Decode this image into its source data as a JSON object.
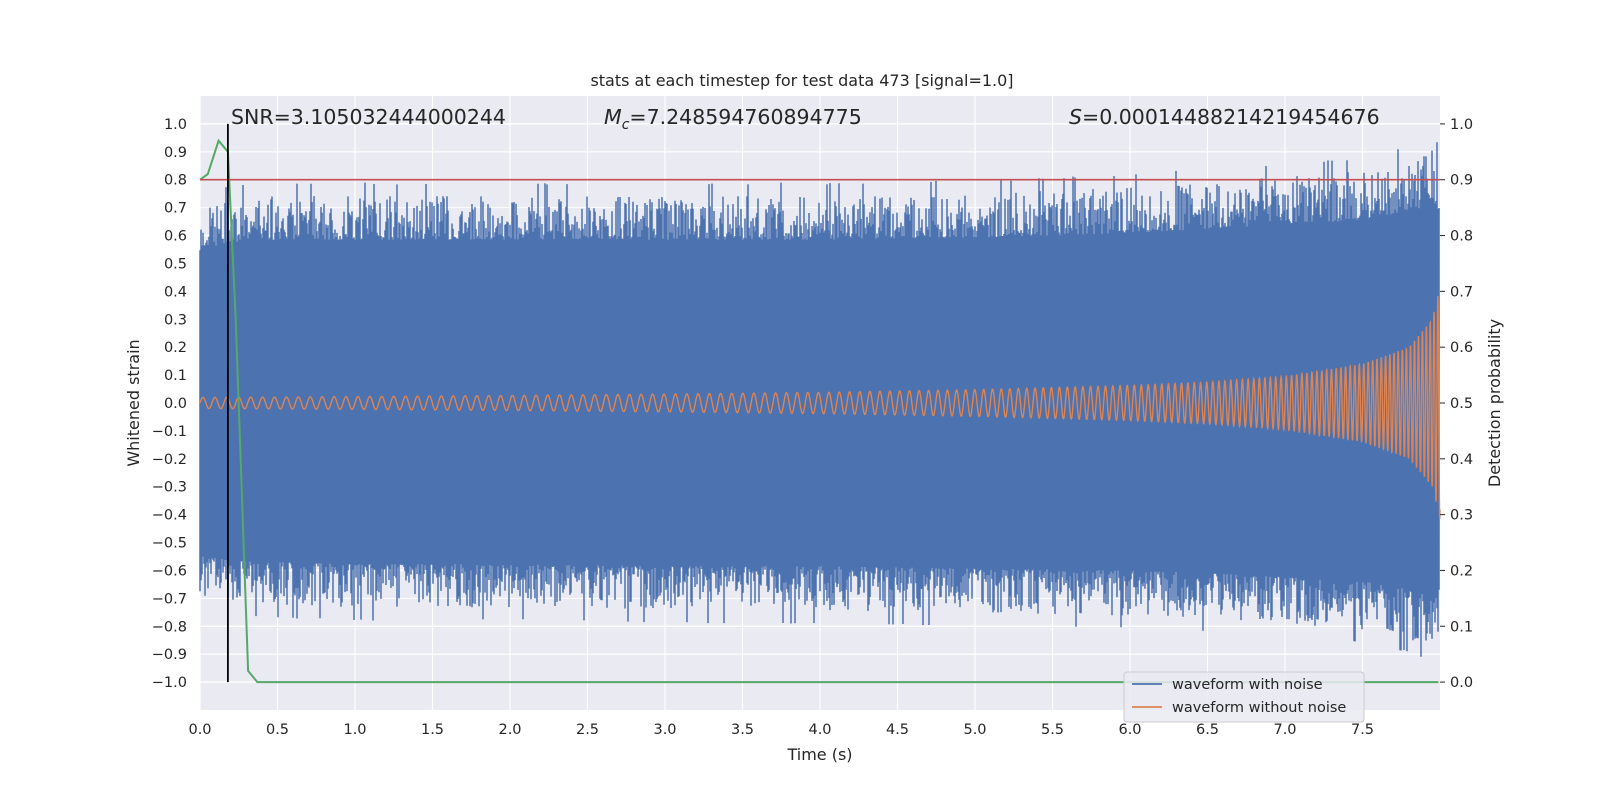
{
  "chart_data": {
    "type": "line",
    "title": "stats at each timestep for test data 473 [signal=1.0]",
    "xlabel": "Time (s)",
    "ylabel_left": "Whitened strain",
    "ylabel_right": "Detection probability",
    "xlim": [
      0.0,
      8.0
    ],
    "ylim_left": [
      -1.1,
      1.1
    ],
    "ylim_right": [
      -0.05,
      1.05
    ],
    "x_ticks": [
      "0.0",
      "0.5",
      "1.0",
      "1.5",
      "2.0",
      "2.5",
      "3.0",
      "3.5",
      "4.0",
      "4.5",
      "5.0",
      "5.5",
      "6.0",
      "6.5",
      "7.0",
      "7.5"
    ],
    "y_left_ticks": [
      "1.0",
      "0.9",
      "0.8",
      "0.7",
      "0.6",
      "0.5",
      "0.4",
      "0.3",
      "0.2",
      "0.1",
      "0.0",
      "−0.1",
      "−0.2",
      "−0.3",
      "−0.4",
      "−0.5",
      "−0.6",
      "−0.7",
      "−0.8",
      "−0.9",
      "−1.0"
    ],
    "y_right_ticks": [
      "1.0",
      "0.9",
      "0.8",
      "0.7",
      "0.6",
      "0.5",
      "0.4",
      "0.3",
      "0.2",
      "0.1",
      "0.0"
    ],
    "annotations": {
      "snr": "SNR=3.105032444000244",
      "mc_symbol": "M",
      "mc_sub": "c",
      "mc_value": "=7.248594760894775",
      "s_symbol": "S",
      "s_value": "=0.00014488214219454676"
    },
    "legend": [
      {
        "label": "waveform with noise",
        "color": "#4c72b0"
      },
      {
        "label": "waveform without noise",
        "color": "#dd8452"
      }
    ],
    "series": [
      {
        "name": "waveform with noise",
        "color": "#4c72b0",
        "axis": "left",
        "upper_envelope_x": [
          0.0,
          0.2,
          0.5,
          1.0,
          2.0,
          3.0,
          4.0,
          5.0,
          6.0,
          6.5,
          7.0,
          7.5,
          7.7,
          7.85,
          7.95,
          8.0
        ],
        "upper_envelope_y": [
          0.7,
          0.74,
          0.75,
          0.75,
          0.75,
          0.75,
          0.75,
          0.76,
          0.78,
          0.8,
          0.82,
          0.84,
          0.87,
          0.89,
          0.92,
          0.88
        ],
        "lower_envelope_y": [
          -0.7,
          -0.72,
          -0.73,
          -0.74,
          -0.74,
          -0.75,
          -0.75,
          -0.76,
          -0.77,
          -0.78,
          -0.8,
          -0.82,
          -0.84,
          -0.87,
          -0.89,
          -0.85
        ]
      },
      {
        "name": "waveform without noise",
        "color": "#dd8452",
        "axis": "left",
        "envelope_x": [
          0.0,
          1.0,
          2.0,
          3.0,
          4.0,
          5.0,
          6.0,
          6.5,
          7.0,
          7.5,
          7.8,
          7.95,
          8.0
        ],
        "envelope_y": [
          0.02,
          0.023,
          0.027,
          0.032,
          0.038,
          0.048,
          0.063,
          0.075,
          0.095,
          0.14,
          0.2,
          0.3,
          0.42
        ]
      },
      {
        "name": "detection probability",
        "color": "#55a868",
        "axis": "right",
        "x": [
          0.0,
          0.05,
          0.12,
          0.18,
          0.23,
          0.31,
          0.37,
          7.95,
          7.99
        ],
        "y": [
          0.9,
          0.91,
          0.97,
          0.95,
          0.65,
          0.02,
          0.0,
          0.0,
          0.0
        ]
      },
      {
        "name": "threshold",
        "color": "#c44e52",
        "axis": "right",
        "y": 0.9
      },
      {
        "name": "trigger time",
        "color": "#000000",
        "axis": "right",
        "x": 0.18,
        "y_range": [
          0.0,
          1.0
        ]
      }
    ]
  }
}
